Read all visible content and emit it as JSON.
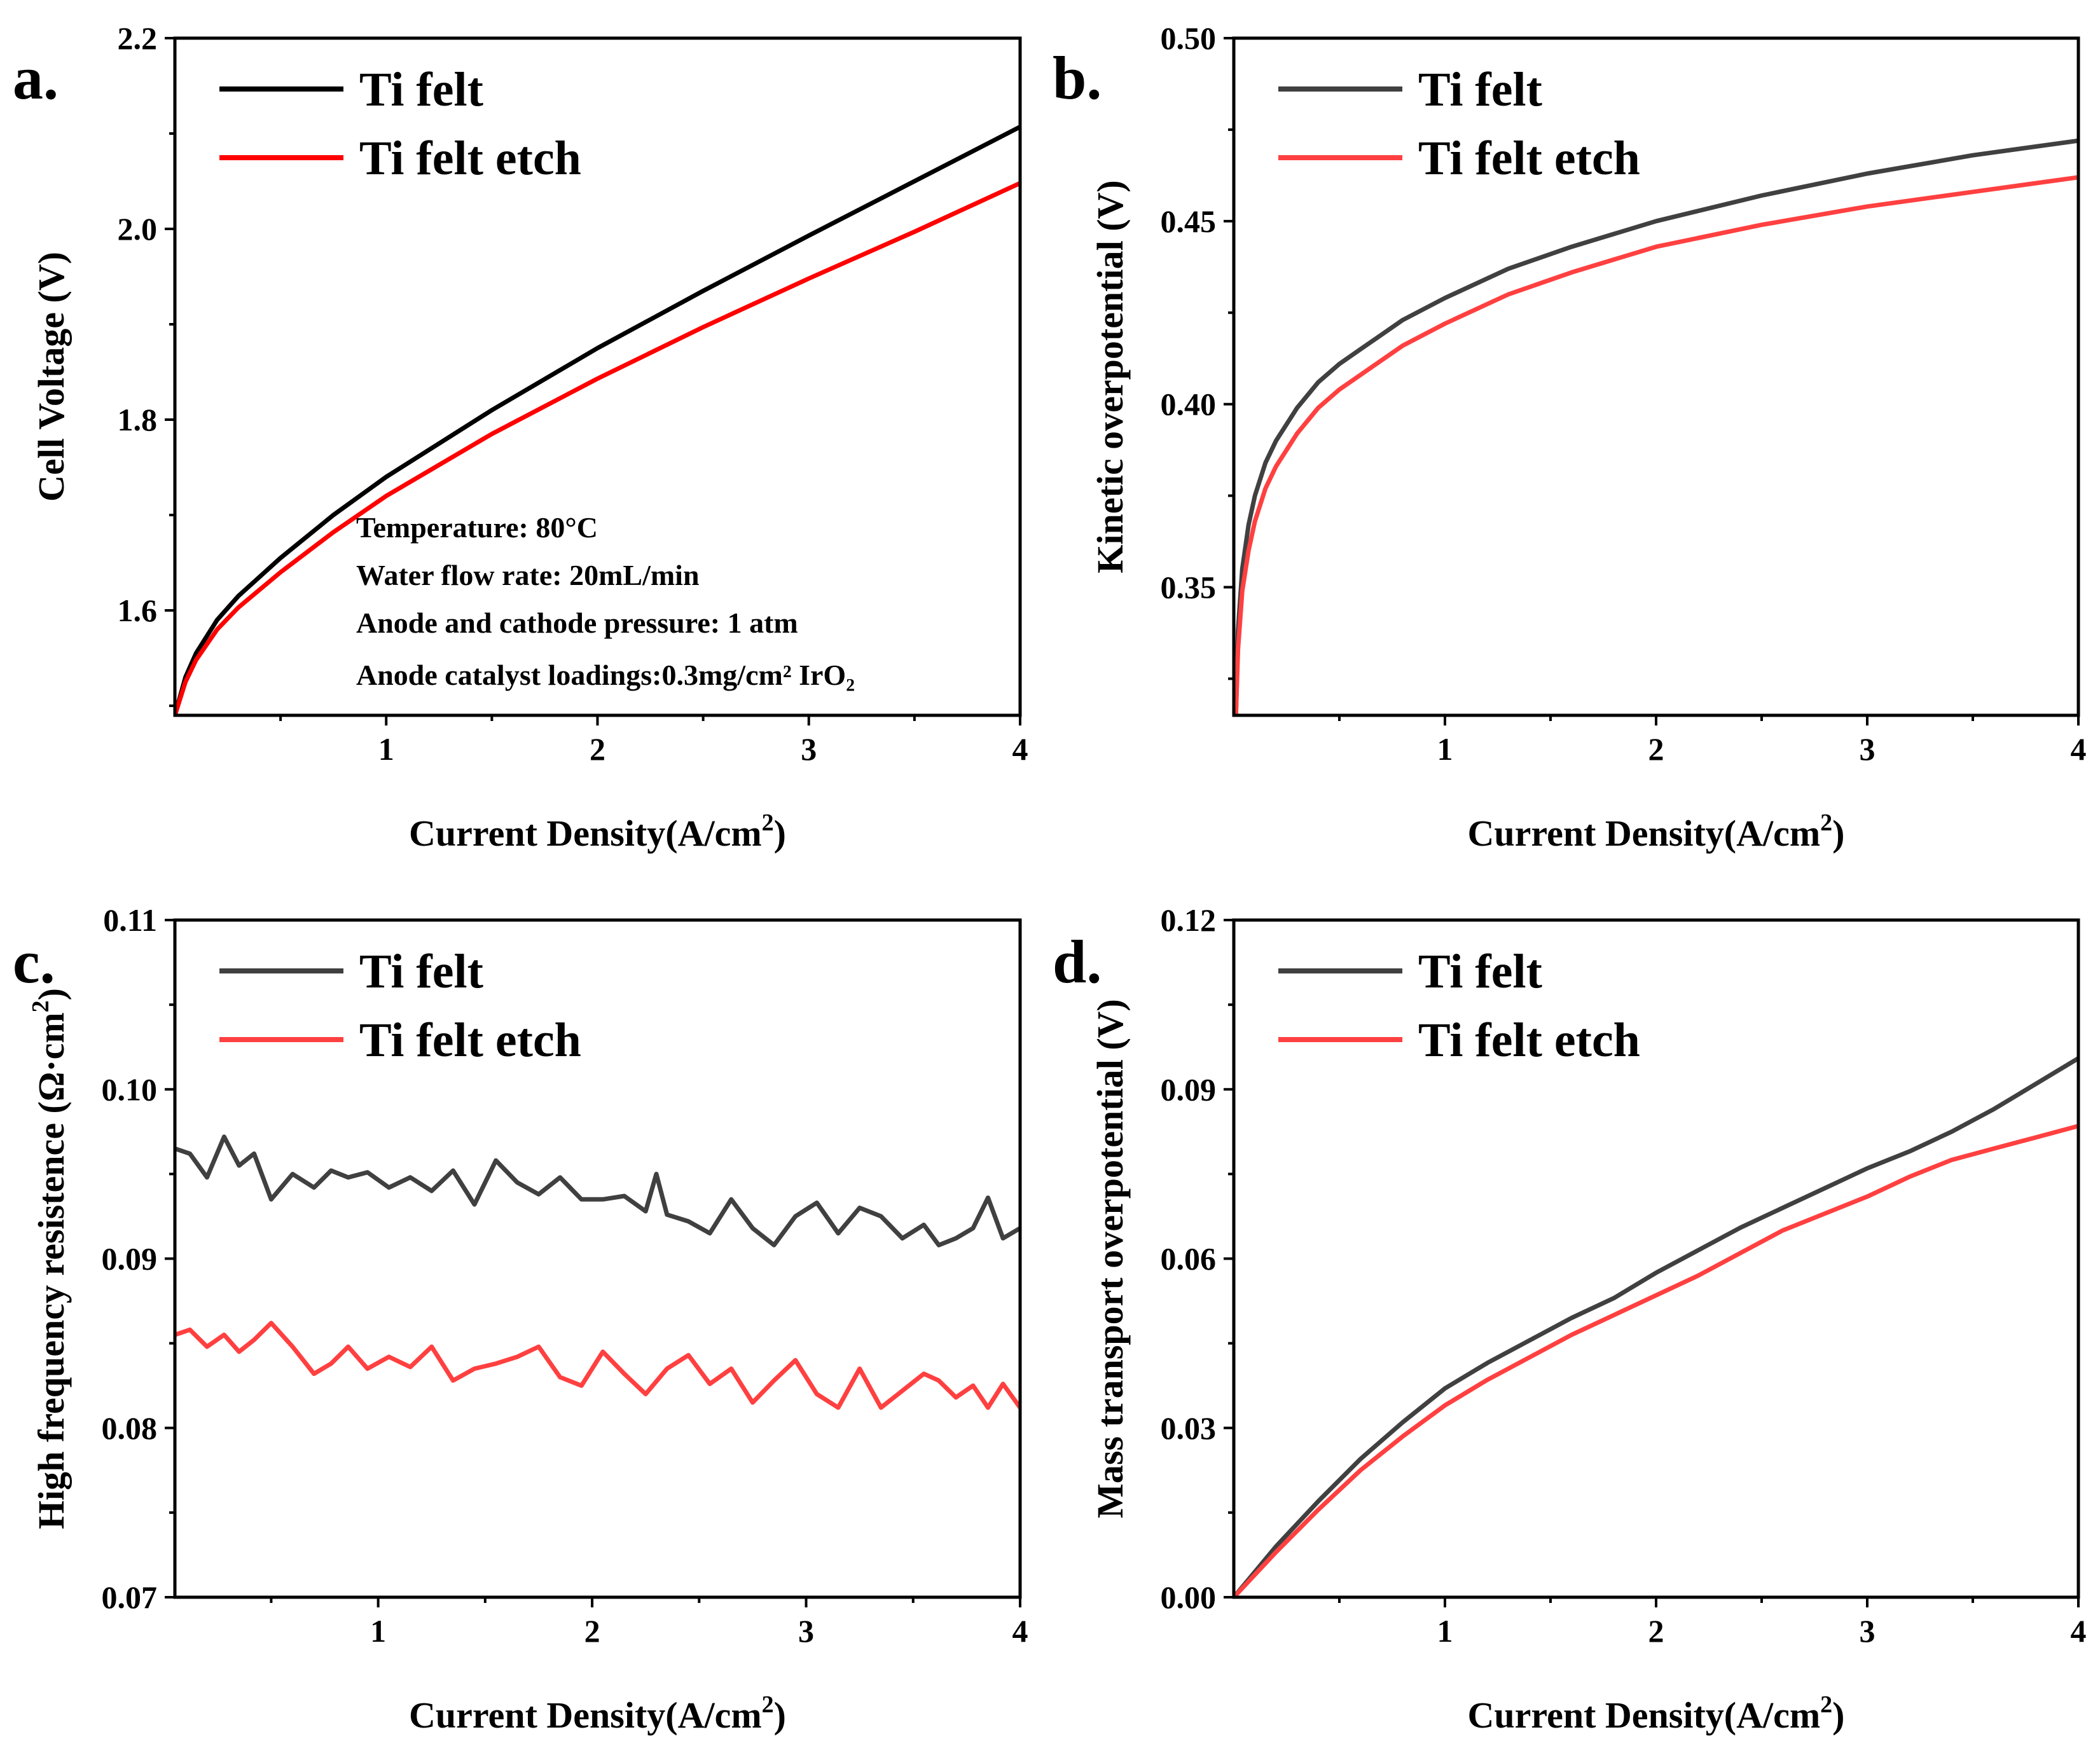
{
  "chart_data": [
    {
      "panel": "a.",
      "type": "line",
      "xlabel": "Current Density(A/cm",
      "xlabel_sup": "2",
      "xlabel_end": ")",
      "ylabel": "Cell Voltage (V)",
      "xlim": [
        0,
        4
      ],
      "ylim": [
        1.49,
        2.2
      ],
      "xticks": [
        1,
        2,
        3,
        4
      ],
      "yticks": [
        1.6,
        1.8,
        2.0,
        2.2
      ],
      "ytick_labels": [
        "1.6",
        "1.8",
        "2.0",
        "2.2"
      ],
      "legend_position": "top-left",
      "annotations": [
        "Temperature: 80°C",
        "Water flow rate: 20mL/min",
        "Anode and cathode pressure: 1 atm",
        "Anode catalyst loadings:0.3mg/cm² IrO₂"
      ],
      "series": [
        {
          "name": "Ti felt",
          "color": "#000000",
          "x": [
            0,
            0.05,
            0.1,
            0.2,
            0.3,
            0.5,
            0.75,
            1.0,
            1.5,
            2.0,
            2.5,
            3.0,
            3.5,
            4.0
          ],
          "y": [
            1.49,
            1.53,
            1.555,
            1.59,
            1.615,
            1.655,
            1.7,
            1.74,
            1.81,
            1.875,
            1.935,
            1.993,
            2.05,
            2.107
          ]
        },
        {
          "name": "Ti felt etch",
          "color": "#ff0000",
          "x": [
            0,
            0.05,
            0.1,
            0.2,
            0.3,
            0.5,
            0.75,
            1.0,
            1.5,
            2.0,
            2.5,
            3.0,
            3.5,
            4.0
          ],
          "y": [
            1.49,
            1.525,
            1.548,
            1.58,
            1.603,
            1.64,
            1.682,
            1.72,
            1.785,
            1.843,
            1.897,
            1.948,
            1.997,
            2.048
          ]
        }
      ]
    },
    {
      "panel": "b.",
      "type": "line",
      "xlabel": "Current Density(A/cm",
      "xlabel_sup": "2",
      "xlabel_end": ")",
      "ylabel": "Kinetic overpotential (V)",
      "xlim": [
        0,
        4
      ],
      "ylim": [
        0.315,
        0.5
      ],
      "xticks": [
        1,
        2,
        3,
        4
      ],
      "yticks": [
        0.35,
        0.4,
        0.45,
        0.5
      ],
      "ytick_labels": [
        "0.35",
        "0.40",
        "0.45",
        "0.50"
      ],
      "legend_position": "top-left",
      "series": [
        {
          "name": "Ti felt",
          "color": "#404040",
          "x": [
            0.01,
            0.02,
            0.04,
            0.07,
            0.1,
            0.15,
            0.2,
            0.3,
            0.4,
            0.5,
            0.6,
            0.8,
            1.0,
            1.3,
            1.6,
            2.0,
            2.5,
            3.0,
            3.5,
            4.0
          ],
          "y": [
            0.315,
            0.338,
            0.355,
            0.367,
            0.375,
            0.384,
            0.39,
            0.399,
            0.406,
            0.411,
            0.415,
            0.423,
            0.429,
            0.437,
            0.443,
            0.45,
            0.457,
            0.463,
            0.468,
            0.472
          ]
        },
        {
          "name": "Ti felt etch",
          "color": "#ff4040",
          "x": [
            0.01,
            0.02,
            0.04,
            0.07,
            0.1,
            0.15,
            0.2,
            0.3,
            0.4,
            0.5,
            0.6,
            0.8,
            1.0,
            1.3,
            1.6,
            2.0,
            2.5,
            3.0,
            3.5,
            4.0
          ],
          "y": [
            0.315,
            0.333,
            0.349,
            0.36,
            0.368,
            0.377,
            0.383,
            0.392,
            0.399,
            0.404,
            0.408,
            0.416,
            0.422,
            0.43,
            0.436,
            0.443,
            0.449,
            0.454,
            0.458,
            0.462
          ]
        }
      ]
    },
    {
      "panel": "c.",
      "type": "line",
      "xlabel": "Current Density(A/cm",
      "xlabel_sup": "2",
      "xlabel_end": ")",
      "ylabel": "High frequency resistence (Ω·cm",
      "ylabel_sup": "2",
      "ylabel_end": ")",
      "xlim": [
        0.05,
        4
      ],
      "ylim": [
        0.07,
        0.11
      ],
      "xticks": [
        1,
        2,
        3,
        4
      ],
      "yticks": [
        0.07,
        0.08,
        0.09,
        0.1,
        0.11
      ],
      "ytick_labels": [
        "0.07",
        "0.08",
        "0.09",
        "0.10",
        "0.11"
      ],
      "legend_position": "top-left",
      "series": [
        {
          "name": "Ti felt",
          "color": "#404040",
          "x": [
            0.05,
            0.12,
            0.2,
            0.28,
            0.35,
            0.42,
            0.5,
            0.6,
            0.7,
            0.78,
            0.86,
            0.95,
            1.05,
            1.15,
            1.25,
            1.35,
            1.45,
            1.55,
            1.65,
            1.75,
            1.85,
            1.95,
            2.05,
            2.15,
            2.25,
            2.3,
            2.35,
            2.45,
            2.55,
            2.65,
            2.75,
            2.85,
            2.95,
            3.05,
            3.15,
            3.25,
            3.35,
            3.45,
            3.55,
            3.62,
            3.7,
            3.78,
            3.85,
            3.92,
            4.0
          ],
          "y": [
            0.0965,
            0.0962,
            0.0948,
            0.0972,
            0.0955,
            0.0962,
            0.0935,
            0.095,
            0.0942,
            0.0952,
            0.0948,
            0.0951,
            0.0942,
            0.0948,
            0.094,
            0.0952,
            0.0932,
            0.0958,
            0.0945,
            0.0938,
            0.0948,
            0.0935,
            0.0935,
            0.0937,
            0.0928,
            0.095,
            0.0926,
            0.0922,
            0.0915,
            0.0935,
            0.0918,
            0.0908,
            0.0925,
            0.0933,
            0.0915,
            0.093,
            0.0925,
            0.0912,
            0.092,
            0.0908,
            0.0912,
            0.0918,
            0.0936,
            0.0912,
            0.0918
          ]
        },
        {
          "name": "Ti felt etch",
          "color": "#ff4040",
          "x": [
            0.05,
            0.12,
            0.2,
            0.28,
            0.35,
            0.42,
            0.5,
            0.6,
            0.7,
            0.78,
            0.86,
            0.95,
            1.05,
            1.15,
            1.25,
            1.35,
            1.45,
            1.55,
            1.65,
            1.75,
            1.85,
            1.95,
            2.05,
            2.15,
            2.25,
            2.35,
            2.45,
            2.55,
            2.65,
            2.75,
            2.85,
            2.95,
            3.05,
            3.15,
            3.25,
            3.35,
            3.45,
            3.55,
            3.62,
            3.7,
            3.78,
            3.85,
            3.92,
            4.0
          ],
          "y": [
            0.0855,
            0.0858,
            0.0848,
            0.0855,
            0.0845,
            0.0852,
            0.0862,
            0.0848,
            0.0832,
            0.0838,
            0.0848,
            0.0835,
            0.0842,
            0.0836,
            0.0848,
            0.0828,
            0.0835,
            0.0838,
            0.0842,
            0.0848,
            0.083,
            0.0825,
            0.0845,
            0.0832,
            0.082,
            0.0835,
            0.0843,
            0.0826,
            0.0835,
            0.0815,
            0.0828,
            0.084,
            0.082,
            0.0812,
            0.0835,
            0.0812,
            0.0822,
            0.0832,
            0.0828,
            0.0818,
            0.0825,
            0.0812,
            0.0826,
            0.0812
          ]
        }
      ]
    },
    {
      "panel": "d.",
      "type": "line",
      "xlabel": "Current Density(A/cm",
      "xlabel_sup": "2",
      "xlabel_end": ")",
      "ylabel": "Mass transport overpotential (V)",
      "xlim": [
        0,
        4
      ],
      "ylim": [
        0,
        0.12
      ],
      "xticks": [
        1,
        2,
        3,
        4
      ],
      "yticks": [
        0,
        0.03,
        0.06,
        0.09,
        0.12
      ],
      "ytick_labels": [
        "0.00",
        "0.03",
        "0.06",
        "0.09",
        "0.12"
      ],
      "legend_position": "top-left",
      "series": [
        {
          "name": "Ti felt",
          "color": "#404040",
          "x": [
            0,
            0.2,
            0.4,
            0.6,
            0.8,
            1.0,
            1.2,
            1.4,
            1.6,
            1.8,
            2.0,
            2.2,
            2.4,
            2.6,
            2.8,
            3.0,
            3.2,
            3.4,
            3.6,
            3.8,
            4.0
          ],
          "y": [
            0,
            0.009,
            0.017,
            0.0245,
            0.031,
            0.037,
            0.0415,
            0.0455,
            0.0495,
            0.053,
            0.0575,
            0.0615,
            0.0655,
            0.069,
            0.0725,
            0.076,
            0.079,
            0.0825,
            0.0865,
            0.091,
            0.0955
          ]
        },
        {
          "name": "Ti felt etch",
          "color": "#ff4040",
          "x": [
            0,
            0.2,
            0.4,
            0.6,
            0.8,
            1.0,
            1.2,
            1.4,
            1.6,
            1.8,
            2.0,
            2.2,
            2.4,
            2.6,
            2.8,
            3.0,
            3.2,
            3.4,
            3.6,
            3.8,
            4.0
          ],
          "y": [
            0,
            0.008,
            0.0155,
            0.0225,
            0.0285,
            0.034,
            0.0385,
            0.0425,
            0.0465,
            0.05,
            0.0535,
            0.057,
            0.061,
            0.065,
            0.068,
            0.071,
            0.0745,
            0.0775,
            0.0795,
            0.0815,
            0.0835
          ]
        }
      ]
    }
  ]
}
